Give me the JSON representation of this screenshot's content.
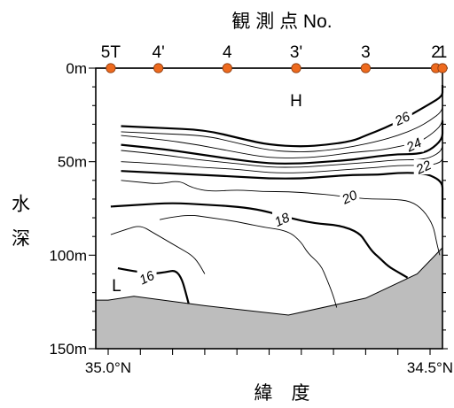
{
  "chart_data": {
    "type": "contour",
    "title": "観 測 点 No.",
    "xlabel": "緯　度",
    "ylabel": "水 深",
    "x_range": [
      35.0,
      34.5
    ],
    "y_range": [
      0,
      150
    ],
    "x_tick_labels": [
      {
        "value": 35.0,
        "label": "35.0°N"
      },
      {
        "value": 34.5,
        "label": "34.5°N"
      }
    ],
    "x_minor_ticks": [
      34.95,
      34.9,
      34.85,
      34.8,
      34.75,
      34.7,
      34.65,
      34.6,
      34.55
    ],
    "y_ticks": [
      {
        "value": 0,
        "label": "0m"
      },
      {
        "value": 50,
        "label": "50m"
      },
      {
        "value": 100,
        "label": "100m"
      },
      {
        "value": 150,
        "label": "150m"
      }
    ],
    "stations": [
      {
        "name": "5T",
        "lat": 34.996
      },
      {
        "name": "4'",
        "lat": 34.922
      },
      {
        "name": "4",
        "lat": 34.815
      },
      {
        "name": "3'",
        "lat": 34.708
      },
      {
        "name": "3",
        "lat": 34.6
      },
      {
        "name": "2",
        "lat": 34.491
      },
      {
        "name": "1",
        "lat": 34.428
      }
    ],
    "station_color": "#ee6a1e",
    "seabed_color": "#bdbdbd",
    "region_labels": [
      {
        "text": "H",
        "lat": 34.708,
        "depth": 17
      },
      {
        "text": "L",
        "lat": 34.987,
        "depth": 116
      }
    ],
    "isotherms": [
      {
        "label": "26",
        "emphasis": true,
        "label_pos": [
          34.543,
          27
        ],
        "points": [
          [
            34.98,
            31
          ],
          [
            34.92,
            32
          ],
          [
            34.85,
            33
          ],
          [
            34.79,
            38
          ],
          [
            34.75,
            41
          ],
          [
            34.7,
            42
          ],
          [
            34.66,
            41
          ],
          [
            34.62,
            39
          ],
          [
            34.6,
            36
          ],
          [
            34.57,
            32
          ],
          [
            34.54,
            27
          ],
          [
            34.52,
            23
          ],
          [
            34.5,
            19
          ],
          [
            34.47,
            15
          ],
          [
            34.445,
            11
          ],
          [
            34.428,
            9
          ]
        ]
      },
      {
        "label": "",
        "emphasis": false,
        "label_pos": null,
        "points": [
          [
            34.98,
            34
          ],
          [
            34.92,
            35
          ],
          [
            34.85,
            36
          ],
          [
            34.8,
            40
          ],
          [
            34.75,
            44
          ],
          [
            34.7,
            45
          ],
          [
            34.66,
            44
          ],
          [
            34.62,
            42
          ],
          [
            34.58,
            39
          ],
          [
            34.55,
            36
          ],
          [
            34.52,
            32
          ],
          [
            34.5,
            28
          ],
          [
            34.47,
            23
          ],
          [
            34.445,
            18
          ],
          [
            34.428,
            15
          ]
        ]
      },
      {
        "label": "24",
        "emphasis": false,
        "label_pos": [
          34.525,
          41
        ],
        "points": [
          [
            34.98,
            36
          ],
          [
            34.92,
            38
          ],
          [
            34.86,
            41
          ],
          [
            34.8,
            45
          ],
          [
            34.75,
            48
          ],
          [
            34.7,
            48
          ],
          [
            34.66,
            47
          ],
          [
            34.62,
            45
          ],
          [
            34.58,
            44
          ],
          [
            34.55,
            42
          ],
          [
            34.52,
            40
          ],
          [
            34.5,
            36
          ],
          [
            34.47,
            30
          ],
          [
            34.445,
            24
          ],
          [
            34.428,
            20
          ]
        ]
      },
      {
        "label": "",
        "emphasis": true,
        "label_pos": null,
        "points": [
          [
            34.98,
            41
          ],
          [
            34.92,
            43
          ],
          [
            34.86,
            46
          ],
          [
            34.8,
            49
          ],
          [
            34.75,
            51
          ],
          [
            34.7,
            51
          ],
          [
            34.66,
            50
          ],
          [
            34.62,
            49
          ],
          [
            34.58,
            47
          ],
          [
            34.55,
            46
          ],
          [
            34.52,
            46
          ],
          [
            34.5,
            44
          ],
          [
            34.47,
            38
          ],
          [
            34.445,
            32
          ],
          [
            34.428,
            28
          ]
        ]
      },
      {
        "label": "",
        "emphasis": false,
        "label_pos": null,
        "points": [
          [
            34.98,
            44
          ],
          [
            34.92,
            46
          ],
          [
            34.86,
            49
          ],
          [
            34.8,
            51
          ],
          [
            34.75,
            53
          ],
          [
            34.7,
            53
          ],
          [
            34.66,
            52
          ],
          [
            34.62,
            51
          ],
          [
            34.58,
            50
          ],
          [
            34.55,
            49
          ],
          [
            34.52,
            49
          ],
          [
            34.5,
            48
          ],
          [
            34.47,
            44
          ],
          [
            34.445,
            38
          ],
          [
            34.428,
            34
          ]
        ]
      },
      {
        "label": "22",
        "emphasis": false,
        "label_pos": [
          34.51,
          53
        ],
        "points": [
          [
            34.98,
            50
          ],
          [
            34.92,
            51
          ],
          [
            34.86,
            53
          ],
          [
            34.8,
            54
          ],
          [
            34.75,
            56
          ],
          [
            34.7,
            56
          ],
          [
            34.66,
            55
          ],
          [
            34.62,
            54
          ],
          [
            34.58,
            53
          ],
          [
            34.55,
            52
          ],
          [
            34.52,
            52
          ],
          [
            34.5,
            52
          ],
          [
            34.47,
            50
          ],
          [
            34.445,
            46
          ],
          [
            34.428,
            41
          ]
        ]
      },
      {
        "label": "",
        "emphasis": true,
        "label_pos": null,
        "points": [
          [
            34.98,
            55
          ],
          [
            34.92,
            56
          ],
          [
            34.86,
            57
          ],
          [
            34.8,
            58
          ],
          [
            34.75,
            59
          ],
          [
            34.7,
            59
          ],
          [
            34.66,
            58
          ],
          [
            34.62,
            57
          ],
          [
            34.58,
            57
          ],
          [
            34.55,
            56
          ],
          [
            34.52,
            56
          ],
          [
            34.5,
            57
          ],
          [
            34.48,
            61
          ],
          [
            34.46,
            67
          ],
          [
            34.445,
            73
          ],
          [
            34.435,
            78
          ],
          [
            34.428,
            80
          ]
        ]
      },
      {
        "label": "20",
        "emphasis": false,
        "label_pos": [
          34.625,
          69
        ],
        "points": [
          [
            34.98,
            60
          ],
          [
            34.95,
            61
          ],
          [
            34.92,
            62
          ],
          [
            34.89,
            60
          ],
          [
            34.87,
            64
          ],
          [
            34.84,
            66
          ],
          [
            34.8,
            65
          ],
          [
            34.76,
            66
          ],
          [
            34.72,
            66
          ],
          [
            34.68,
            67
          ],
          [
            34.65,
            68
          ],
          [
            34.6,
            70
          ],
          [
            34.56,
            70
          ],
          [
            34.53,
            71
          ],
          [
            34.51,
            76
          ],
          [
            34.495,
            84
          ],
          [
            34.49,
            93
          ],
          [
            34.485,
            100
          ]
        ]
      },
      {
        "label": "18",
        "emphasis": true,
        "label_pos": [
          34.73,
          81
        ],
        "points": [
          [
            34.996,
            74
          ],
          [
            34.95,
            73
          ],
          [
            34.9,
            72
          ],
          [
            34.85,
            73
          ],
          [
            34.8,
            74
          ],
          [
            34.76,
            76
          ],
          [
            34.72,
            80
          ],
          [
            34.68,
            83
          ],
          [
            34.64,
            84
          ],
          [
            34.61,
            88
          ],
          [
            34.6,
            93
          ],
          [
            34.59,
            98
          ],
          [
            34.58,
            101
          ],
          [
            34.565,
            106
          ],
          [
            34.55,
            109
          ],
          [
            34.535,
            112
          ]
        ]
      },
      {
        "label": "",
        "emphasis": false,
        "label_pos": null,
        "points": [
          [
            34.996,
            89
          ],
          [
            34.97,
            86
          ],
          [
            34.95,
            84
          ],
          [
            34.93,
            88
          ],
          [
            34.91,
            92
          ],
          [
            34.89,
            96
          ],
          [
            34.87,
            100
          ],
          [
            34.86,
            104
          ],
          [
            34.85,
            110
          ]
        ]
      },
      {
        "label": "",
        "emphasis": false,
        "label_pos": null,
        "points": [
          [
            34.92,
            81
          ],
          [
            34.88,
            78
          ],
          [
            34.84,
            80
          ],
          [
            34.8,
            82
          ],
          [
            34.76,
            85
          ],
          [
            34.72,
            87
          ],
          [
            34.7,
            93
          ],
          [
            34.69,
            99
          ],
          [
            34.67,
            105
          ],
          [
            34.66,
            113
          ],
          [
            34.65,
            122
          ],
          [
            34.645,
            128
          ]
        ]
      },
      {
        "label": "16",
        "emphasis": true,
        "label_pos": [
          34.94,
          112
        ],
        "points": [
          [
            34.985,
            107
          ],
          [
            34.97,
            108
          ],
          [
            34.95,
            109
          ],
          [
            34.93,
            110
          ],
          [
            34.91,
            109
          ],
          [
            34.895,
            108
          ],
          [
            34.885,
            113
          ],
          [
            34.878,
            122
          ],
          [
            34.875,
            126
          ]
        ]
      }
    ],
    "seabed_profile": [
      [
        35.0,
        124
      ],
      [
        34.96,
        122
      ],
      [
        34.85,
        127
      ],
      [
        34.72,
        132
      ],
      [
        34.6,
        123
      ],
      [
        34.52,
        110
      ],
      [
        34.48,
        96
      ],
      [
        34.45,
        85
      ]
    ]
  }
}
